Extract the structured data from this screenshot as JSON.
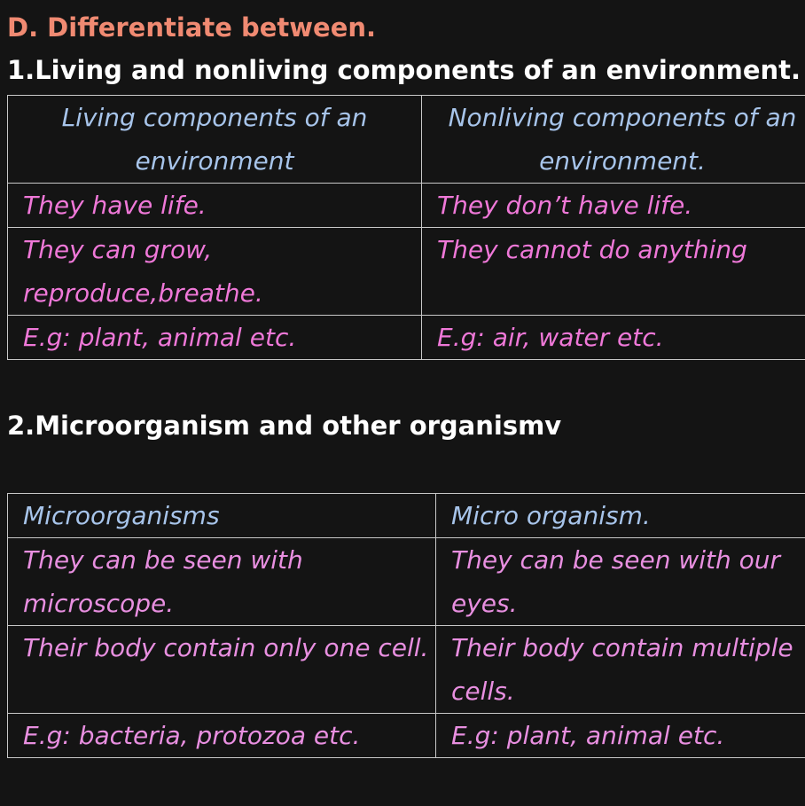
{
  "document": {
    "title": "D. Differentiate between.",
    "section1": {
      "heading": "1.Living and nonliving components of an environment.",
      "table": {
        "headers": [
          "Living components of an environment",
          "Nonliving components of an environment."
        ],
        "rows": [
          [
            "They have life.",
            "They don’t have life."
          ],
          [
            "They can grow, reproduce,breathe.",
            "They cannot do anything"
          ],
          [
            "E.g: plant, animal etc.",
            "E.g: air, water etc."
          ]
        ]
      }
    },
    "section2": {
      "heading": "2.Microorganism and other organismv",
      "table": {
        "headers": [
          "Microorganisms",
          "Micro  organism."
        ],
        "rows": [
          [
            "They can be seen with microscope.",
            "They can be seen with our eyes."
          ],
          [
            "Their body contain only one cell.",
            "Their body contain multiple cells."
          ],
          [
            "E.g: bacteria, protozoa etc.",
            "E.g: plant, animal etc."
          ]
        ]
      }
    }
  },
  "colors": {
    "background": "#141414",
    "title": "#f08a72",
    "heading": "#ffffff",
    "table_header_text": "#a7c4ea",
    "table_body_text": "#ef78d8",
    "border": "#c8c8c8",
    "spell_underline": "#d03a3a"
  }
}
